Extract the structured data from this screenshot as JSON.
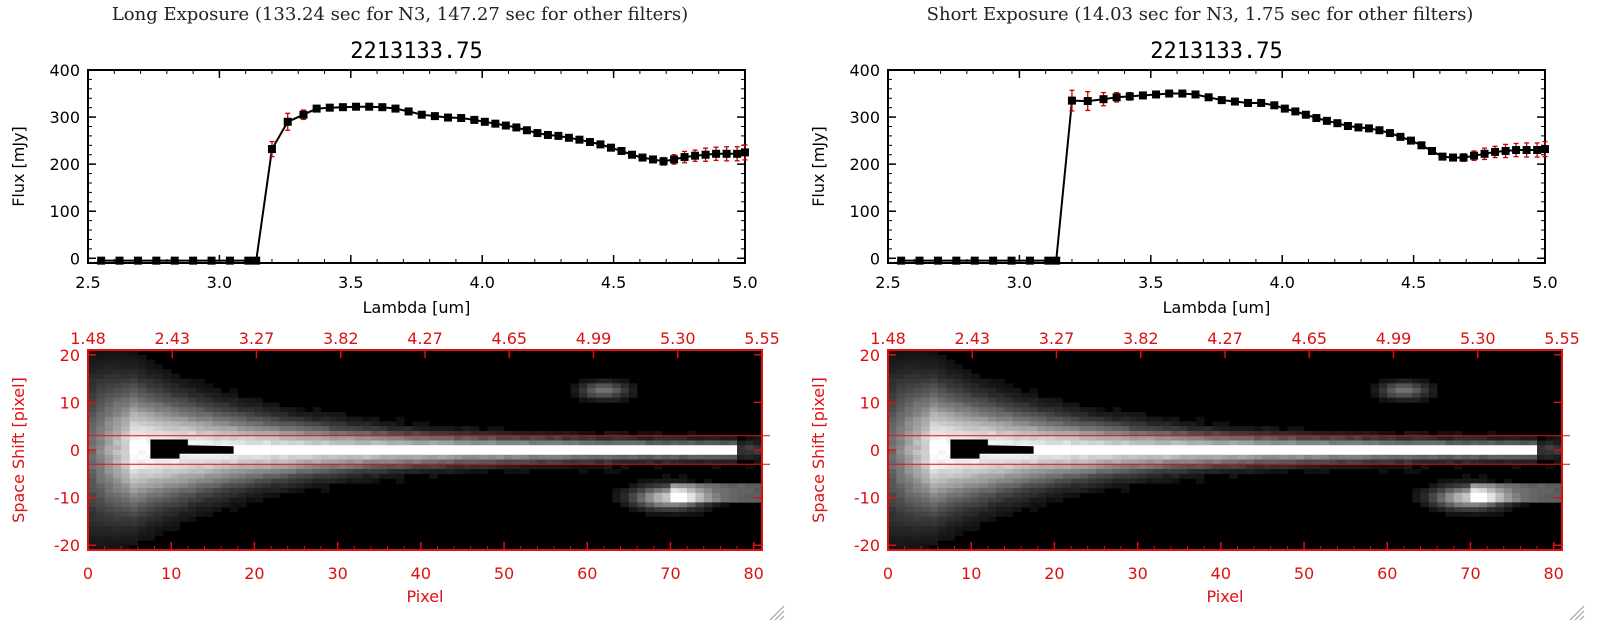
{
  "panels": [
    {
      "id": "long",
      "exposure_title": "Long Exposure (133.24 sec for N3, 147.27 sec for other filters)",
      "spectrum": {
        "title": "2213133.75",
        "xlabel": "Lambda [um]",
        "ylabel": "Flux [mJy]",
        "xlim": [
          2.5,
          5.0
        ],
        "ylim": [
          -10,
          400
        ],
        "xticks": [
          "2.5",
          "3.0",
          "3.5",
          "4.0",
          "4.5",
          "5.0"
        ],
        "yticks": [
          "0",
          "100",
          "200",
          "300",
          "400"
        ],
        "x": [
          2.55,
          2.62,
          2.69,
          2.76,
          2.83,
          2.9,
          2.97,
          3.04,
          3.11,
          3.14,
          3.2,
          3.26,
          3.32,
          3.37,
          3.42,
          3.47,
          3.52,
          3.57,
          3.62,
          3.67,
          3.72,
          3.77,
          3.82,
          3.87,
          3.92,
          3.97,
          4.01,
          4.05,
          4.09,
          4.13,
          4.17,
          4.21,
          4.25,
          4.29,
          4.33,
          4.37,
          4.41,
          4.45,
          4.49,
          4.53,
          4.57,
          4.61,
          4.65,
          4.69,
          4.73,
          4.77,
          4.81,
          4.85,
          4.89,
          4.93,
          4.97,
          5.0
        ],
        "y": [
          -5,
          -5,
          -5,
          -5,
          -5,
          -5,
          -5,
          -5,
          -5,
          -5,
          232,
          290,
          305,
          318,
          320,
          321,
          322,
          322,
          321,
          318,
          312,
          305,
          302,
          299,
          298,
          294,
          290,
          286,
          282,
          278,
          272,
          266,
          262,
          260,
          256,
          252,
          247,
          242,
          235,
          228,
          220,
          214,
          210,
          206,
          210,
          215,
          218,
          220,
          222,
          222,
          222,
          225
        ],
        "yerr": [
          0,
          0,
          0,
          0,
          0,
          0,
          0,
          0,
          0,
          0,
          16,
          18,
          10,
          6,
          5,
          5,
          5,
          5,
          5,
          5,
          4,
          4,
          4,
          4,
          4,
          4,
          4,
          4,
          4,
          4,
          4,
          4,
          4,
          4,
          4,
          4,
          4,
          4,
          4,
          5,
          5,
          5,
          6,
          8,
          10,
          12,
          12,
          14,
          14,
          15,
          15,
          16
        ]
      },
      "image": {
        "ylabel": "Space Shift [pixel]",
        "xlabel": "Pixel",
        "xticks": [
          "0",
          "10",
          "20",
          "30",
          "40",
          "50",
          "60",
          "70",
          "80"
        ],
        "yticks": [
          "-20",
          "-10",
          "0",
          "10",
          "20"
        ],
        "top_ticks": [
          "1.48",
          "2.43",
          "3.27",
          "3.82",
          "4.27",
          "4.65",
          "4.99",
          "5.30",
          "5.55"
        ],
        "xlim": [
          0,
          81
        ],
        "ylim": [
          -21,
          21
        ],
        "aperture": [
          -3,
          3
        ]
      }
    },
    {
      "id": "short",
      "exposure_title": "Short Exposure (14.03 sec for N3, 1.75 sec for other filters)",
      "spectrum": {
        "title": "2213133.75",
        "xlabel": "Lambda [um]",
        "ylabel": "Flux [mJy]",
        "xlim": [
          2.5,
          5.0
        ],
        "ylim": [
          -10,
          400
        ],
        "xticks": [
          "2.5",
          "3.0",
          "3.5",
          "4.0",
          "4.5",
          "5.0"
        ],
        "yticks": [
          "0",
          "100",
          "200",
          "300",
          "400"
        ],
        "x": [
          2.55,
          2.62,
          2.69,
          2.76,
          2.83,
          2.9,
          2.97,
          3.04,
          3.11,
          3.14,
          3.2,
          3.26,
          3.32,
          3.37,
          3.42,
          3.47,
          3.52,
          3.57,
          3.62,
          3.67,
          3.72,
          3.77,
          3.82,
          3.87,
          3.92,
          3.97,
          4.01,
          4.05,
          4.09,
          4.13,
          4.17,
          4.21,
          4.25,
          4.29,
          4.33,
          4.37,
          4.41,
          4.45,
          4.49,
          4.53,
          4.57,
          4.61,
          4.65,
          4.69,
          4.73,
          4.77,
          4.81,
          4.85,
          4.89,
          4.93,
          4.97,
          5.0
        ],
        "y": [
          -5,
          -5,
          -5,
          -5,
          -5,
          -5,
          -5,
          -5,
          -5,
          -5,
          335,
          334,
          338,
          342,
          344,
          346,
          348,
          350,
          350,
          348,
          342,
          336,
          333,
          330,
          330,
          325,
          318,
          312,
          305,
          298,
          292,
          287,
          281,
          278,
          276,
          272,
          266,
          258,
          250,
          240,
          228,
          216,
          214,
          214,
          218,
          222,
          226,
          228,
          230,
          230,
          230,
          232
        ],
        "yerr": [
          0,
          0,
          0,
          0,
          0,
          0,
          0,
          0,
          0,
          0,
          22,
          20,
          14,
          10,
          8,
          7,
          6,
          6,
          6,
          6,
          5,
          5,
          5,
          5,
          5,
          5,
          5,
          5,
          5,
          5,
          5,
          5,
          5,
          5,
          5,
          5,
          5,
          5,
          5,
          5,
          6,
          6,
          7,
          8,
          10,
          12,
          12,
          14,
          14,
          15,
          15,
          16
        ]
      },
      "image": {
        "ylabel": "Space Shift [pixel]",
        "xlabel": "Pixel",
        "xticks": [
          "0",
          "10",
          "20",
          "30",
          "40",
          "50",
          "60",
          "70",
          "80"
        ],
        "yticks": [
          "-20",
          "-10",
          "0",
          "10",
          "20"
        ],
        "top_ticks": [
          "1.48",
          "2.43",
          "3.27",
          "3.82",
          "4.27",
          "4.65",
          "4.99",
          "5.30",
          "5.55"
        ],
        "xlim": [
          0,
          81
        ],
        "ylim": [
          -21,
          21
        ],
        "aperture": [
          -3,
          3
        ]
      }
    }
  ],
  "chart_data": [
    {
      "type": "line",
      "title": "2213133.75",
      "subtitle": "Long Exposure (133.24 sec for N3, 147.27 sec for other filters)",
      "xlabel": "Lambda [um]",
      "ylabel": "Flux [mJy]",
      "xlim": [
        2.5,
        5.0
      ],
      "ylim": [
        -10,
        400
      ],
      "series": [
        {
          "name": "Flux",
          "error_bars": true
        }
      ]
    },
    {
      "type": "heatmap",
      "xlabel": "Pixel",
      "ylabel": "Space Shift [pixel]",
      "xlim": [
        0,
        81
      ],
      "ylim": [
        -21,
        21
      ],
      "top_axis_labels": [
        "1.48",
        "2.43",
        "3.27",
        "3.82",
        "4.27",
        "4.65",
        "4.99",
        "5.30",
        "5.55"
      ]
    },
    {
      "type": "line",
      "title": "2213133.75",
      "subtitle": "Short Exposure (14.03 sec for N3, 1.75 sec for other filters)",
      "xlabel": "Lambda [um]",
      "ylabel": "Flux [mJy]",
      "xlim": [
        2.5,
        5.0
      ],
      "ylim": [
        -10,
        400
      ],
      "series": [
        {
          "name": "Flux",
          "error_bars": true
        }
      ]
    },
    {
      "type": "heatmap",
      "xlabel": "Pixel",
      "ylabel": "Space Shift [pixel]",
      "xlim": [
        0,
        81
      ],
      "ylim": [
        -21,
        21
      ],
      "top_axis_labels": [
        "1.48",
        "2.43",
        "3.27",
        "3.82",
        "4.27",
        "4.65",
        "4.99",
        "5.30",
        "5.55"
      ]
    }
  ],
  "colors": {
    "axis": "#000000",
    "marker": "#000000",
    "errorbar": "#cc0000",
    "image_axis": "#dd1111"
  }
}
